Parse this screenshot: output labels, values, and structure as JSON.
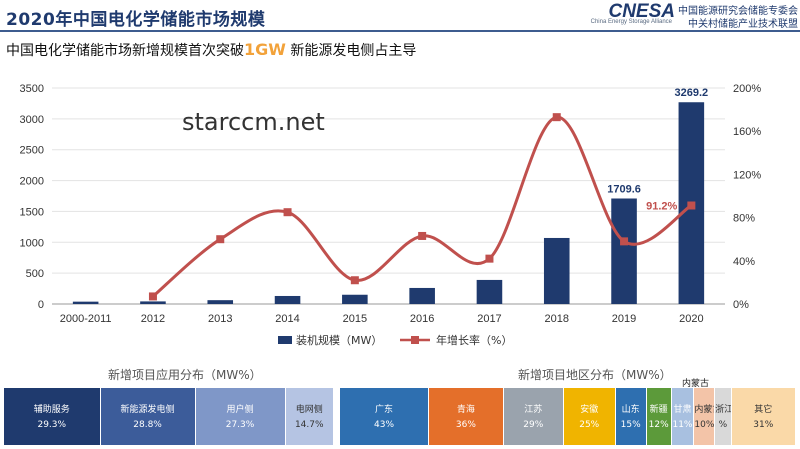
{
  "header": {
    "title": "2020年中国电化学储能市场规模",
    "brand_mark": "CNESA",
    "brand_sub": "China Energy Storage Alliance",
    "brand_cn_line1": "中国能源研究会储能专委会",
    "brand_cn_line2": "中关村储能产业技术联盟"
  },
  "subtitle": {
    "part1": "中国电化学储能市场新增规模首次突破",
    "highlight": "1GW",
    "part2": "  新能源发电侧占主导"
  },
  "watermark_text": "starccm.net",
  "chart_data": {
    "type": "bar",
    "categories": [
      "2000-2011",
      "2012",
      "2013",
      "2014",
      "2015",
      "2016",
      "2017",
      "2018",
      "2019",
      "2020"
    ],
    "series": [
      {
        "name": "装机规模（MW）",
        "type": "bar",
        "axis": "left",
        "color": "#1f3a6e",
        "values": [
          38,
          42,
          62,
          130,
          150,
          260,
          390,
          1070,
          1709.6,
          3269.2
        ]
      },
      {
        "name": "年增长率（%）",
        "type": "line",
        "axis": "right",
        "color": "#c0504d",
        "values": [
          null,
          7,
          60,
          85,
          22,
          63,
          42,
          173,
          58,
          91.2
        ]
      }
    ],
    "bar_value_labels": [
      {
        "index": 8,
        "text": "1709.6"
      },
      {
        "index": 9,
        "text": "3269.2"
      }
    ],
    "line_value_labels": [
      {
        "index": 9,
        "text": "91.2%"
      }
    ],
    "ylim_left": [
      0,
      3500
    ],
    "yticks_left": [
      "0",
      "500",
      "1000",
      "1500",
      "2000",
      "2500",
      "3000",
      "3500"
    ],
    "ylim_right": [
      0,
      200
    ],
    "yticks_right": [
      "0%",
      "40%",
      "80%",
      "120%",
      "160%",
      "200%"
    ],
    "grid": true,
    "legend_position": "bottom"
  },
  "application_distribution": {
    "title": "新增项目应用分布（MW%）",
    "items": [
      {
        "label": "辅助服务",
        "value": "29.3%",
        "share": 29.3,
        "color": "#1f3a6e"
      },
      {
        "label": "新能源发电侧",
        "value": "28.8%",
        "share": 28.8,
        "color": "#3c5c9a"
      },
      {
        "label": "用户侧",
        "value": "27.3%",
        "share": 27.3,
        "color": "#7f97c8"
      },
      {
        "label": "电网侧",
        "value": "14.7%",
        "share": 14.7,
        "color": "#b5c4e3"
      }
    ]
  },
  "region_distribution": {
    "title": "新增项目地区分布（MW%）",
    "items": [
      {
        "label": "广东",
        "value": "43%",
        "color": "#2e6fb0"
      },
      {
        "label": "青海",
        "value": "36%",
        "color": "#e46f2a"
      },
      {
        "label": "江苏",
        "value": "29%",
        "color": "#9aa3ad"
      },
      {
        "label": "安徽",
        "value": "25%",
        "color": "#f0b400"
      },
      {
        "label": "山东",
        "value": "15%",
        "color": "#2e6fb0"
      },
      {
        "label": "新疆",
        "value": "12%",
        "color": "#5c9a3a"
      },
      {
        "label": "甘肃",
        "value": "11%",
        "color": "#a8c0e0"
      },
      {
        "label": "内蒙古",
        "value": "10%",
        "color": "#f3c4a8"
      },
      {
        "label": "浙江",
        "value": "%",
        "color": "#d9d9d9"
      },
      {
        "label": "其它",
        "value": "31%",
        "color": "#fad9a8"
      }
    ]
  },
  "floating_label": "内蒙古"
}
